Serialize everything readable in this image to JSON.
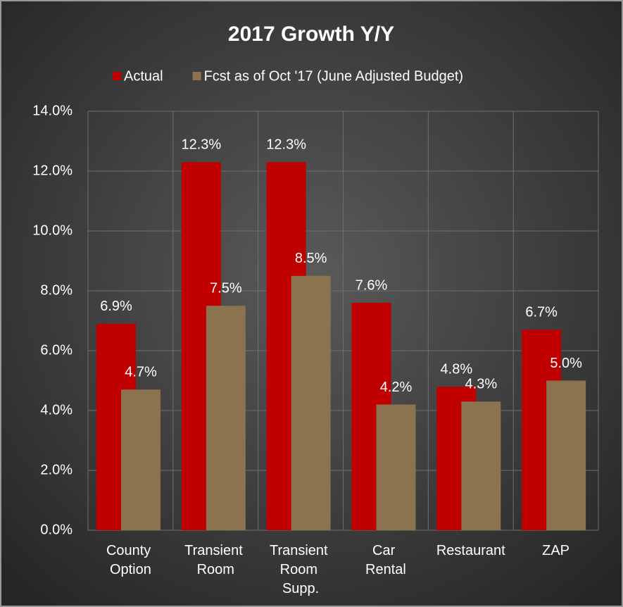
{
  "chart_data": {
    "type": "bar",
    "title": "2017 Growth Y/Y",
    "categories": [
      "County Option",
      "Transient Room",
      "Transient Room Supp.",
      "Car Rental",
      "Restaurant",
      "ZAP"
    ],
    "series": [
      {
        "name": "Actual",
        "color": "#c00000",
        "values": [
          6.9,
          12.3,
          12.3,
          7.6,
          4.8,
          6.7
        ],
        "value_labels": [
          "6.9%",
          "12.3%",
          "12.3%",
          "7.6%",
          "4.8%",
          "6.7%"
        ]
      },
      {
        "name": "Fcst as of Oct '17 (June Adjusted Budget)",
        "color": "#8b7350",
        "values": [
          4.7,
          7.5,
          8.5,
          4.2,
          4.3,
          5.0
        ],
        "value_labels": [
          "4.7%",
          "7.5%",
          "8.5%",
          "4.2%",
          "4.3%",
          "5.0%"
        ]
      }
    ],
    "ylim": [
      0,
      14
    ],
    "yticks": [
      {
        "value": 0,
        "label": "0.0%"
      },
      {
        "value": 2,
        "label": "2.0%"
      },
      {
        "value": 4,
        "label": "4.0%"
      },
      {
        "value": 6,
        "label": "6.0%"
      },
      {
        "value": 8,
        "label": "8.0%"
      },
      {
        "value": 10,
        "label": "10.0%"
      },
      {
        "value": 12,
        "label": "12.0%"
      },
      {
        "value": 14,
        "label": "14.0%"
      }
    ],
    "grid": true,
    "legend": "top"
  }
}
